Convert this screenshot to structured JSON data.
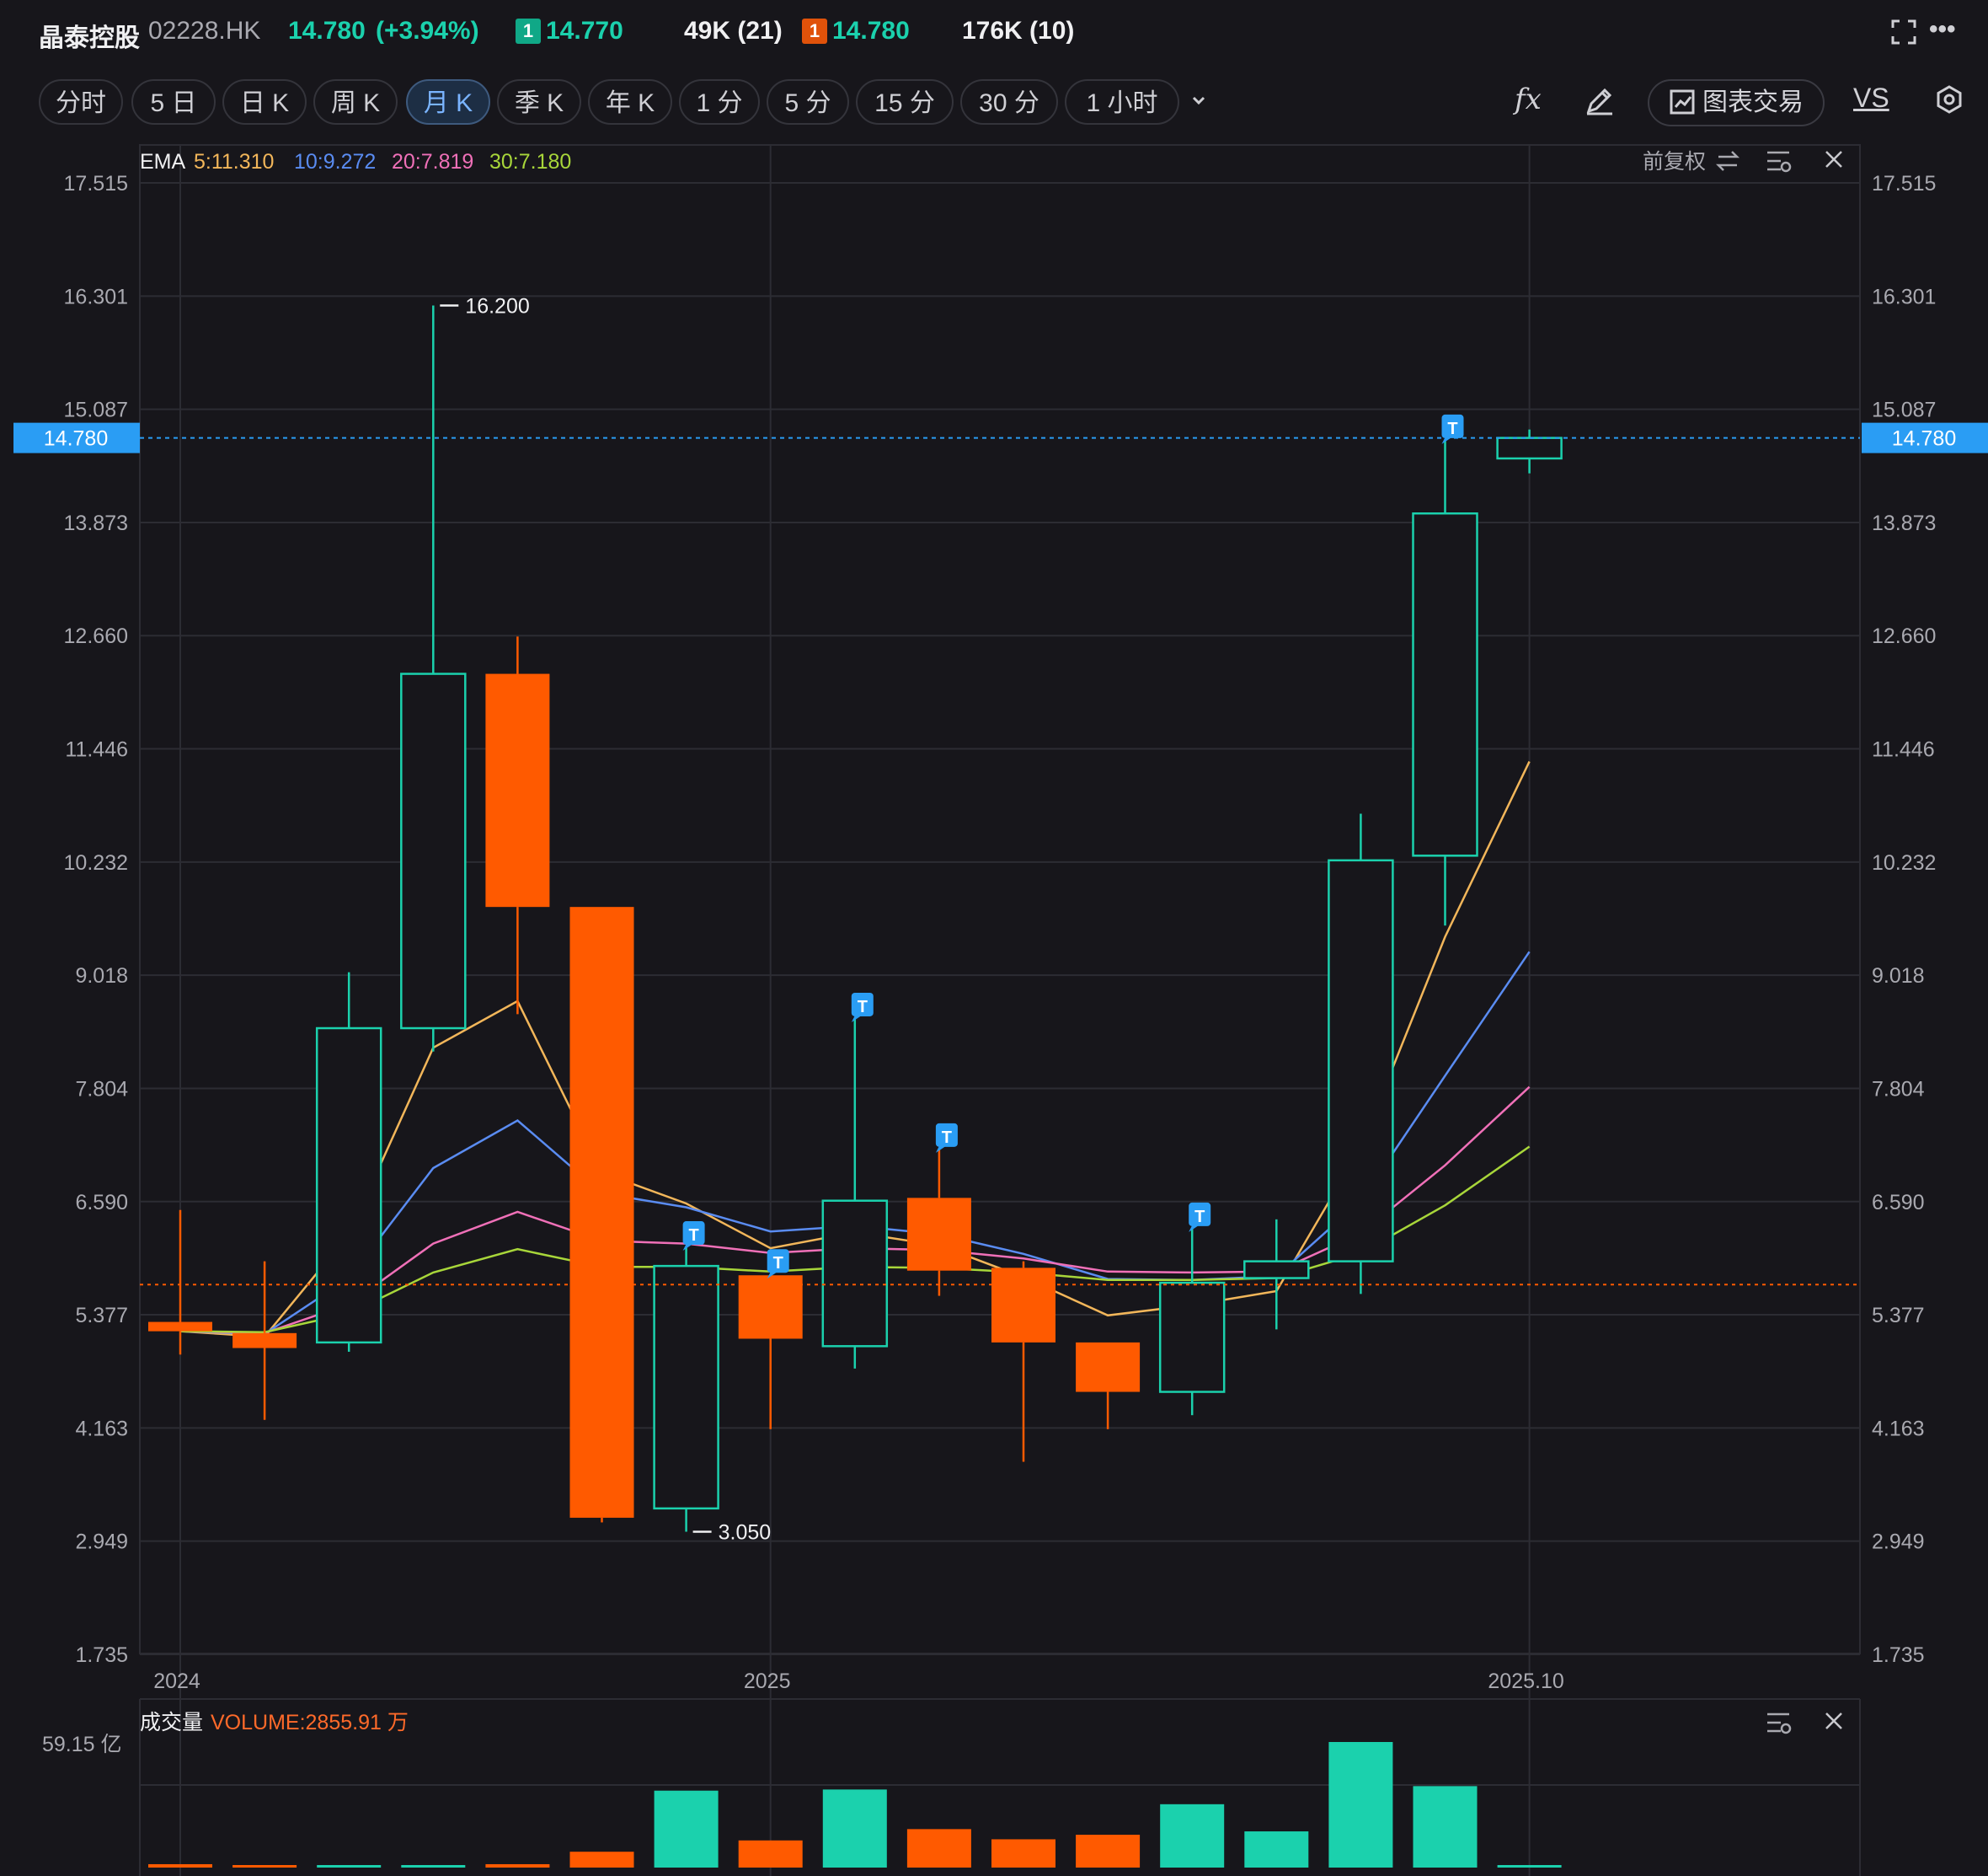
{
  "header": {
    "name": "晶泰控股",
    "code": "02228.HK",
    "price": "14.780",
    "change": "(+3.94%)",
    "bid_badge": "1",
    "bid_price": "14.770",
    "bid_vol": "49K (21)",
    "ask_badge": "1",
    "ask_price": "14.780",
    "ask_vol": "176K (10)",
    "more_label": "•••"
  },
  "tabs": [
    "分时",
    "5 日",
    "日 K",
    "周 K",
    "月 K",
    "季 K",
    "年 K",
    "1 分",
    "5 分",
    "15 分",
    "30 分",
    "1 小时"
  ],
  "active_tab": "月 K",
  "toolbar": {
    "fx_label": "fx",
    "trade_label": "图表交易",
    "vs_label": "VS"
  },
  "colors": {
    "up": "#1bd1ad",
    "down": "#ff5a00",
    "bg": "#17161b",
    "grid": "#2c2c33",
    "accent": "#2a9df4"
  },
  "chart_data": {
    "type": "candlestick",
    "period": "monthly",
    "indicator_label": "EMA",
    "ema_legend": [
      {
        "text": "5:11.310",
        "color": "#f2b65a"
      },
      {
        "text": "10:9.272",
        "color": "#5a8cf2"
      },
      {
        "text": "20:7.819",
        "color": "#f070b8"
      },
      {
        "text": "30:7.180",
        "color": "#a8d63a"
      }
    ],
    "adjust_label": "前复权",
    "y_ticks": [
      "17.515",
      "16.301",
      "15.087",
      "13.873",
      "12.660",
      "11.446",
      "10.232",
      "9.018",
      "7.804",
      "6.590",
      "5.377",
      "4.163",
      "2.949",
      "1.735"
    ],
    "y_range": [
      1.735,
      17.515
    ],
    "x_ticks": [
      {
        "label": "2024",
        "index": 0
      },
      {
        "label": "2025",
        "index": 7
      },
      {
        "label": "2025.10",
        "index": 16
      }
    ],
    "current_price": "14.780",
    "ref_price": 5.7,
    "max_label": "16.200",
    "min_label": "3.050",
    "candles": [
      {
        "o": 5.3,
        "h": 6.5,
        "l": 4.95,
        "c": 5.2
      },
      {
        "o": 5.18,
        "h": 5.95,
        "l": 4.25,
        "c": 5.02
      },
      {
        "o": 5.08,
        "h": 9.05,
        "l": 4.98,
        "c": 8.45
      },
      {
        "o": 8.45,
        "h": 16.2,
        "l": 8.2,
        "c": 12.25
      },
      {
        "o": 12.25,
        "h": 12.65,
        "l": 8.6,
        "c": 9.75
      },
      {
        "o": 9.75,
        "h": 9.75,
        "l": 3.15,
        "c": 3.2
      },
      {
        "o": 3.3,
        "h": 6.1,
        "l": 3.05,
        "c": 5.9
      },
      {
        "o": 5.8,
        "h": 5.8,
        "l": 4.15,
        "c": 5.12
      },
      {
        "o": 5.04,
        "h": 8.55,
        "l": 4.8,
        "c": 6.6
      },
      {
        "o": 6.63,
        "h": 7.15,
        "l": 5.58,
        "c": 5.85
      },
      {
        "o": 5.88,
        "h": 5.95,
        "l": 3.8,
        "c": 5.08
      },
      {
        "o": 5.08,
        "h": 5.08,
        "l": 4.15,
        "c": 4.55
      },
      {
        "o": 4.55,
        "h": 6.3,
        "l": 4.3,
        "c": 5.72
      },
      {
        "o": 5.77,
        "h": 6.4,
        "l": 5.22,
        "c": 5.95
      },
      {
        "o": 5.95,
        "h": 10.75,
        "l": 5.6,
        "c": 10.25
      },
      {
        "o": 10.3,
        "h": 14.75,
        "l": 9.55,
        "c": 13.97
      },
      {
        "o": 14.56,
        "h": 14.87,
        "l": 14.4,
        "c": 14.78
      }
    ],
    "ema": [
      {
        "name": "EMA5",
        "color": "#f2b65a",
        "values": [
          5.2,
          5.14,
          6.24,
          8.24,
          8.74,
          6.9,
          6.57,
          6.09,
          6.26,
          6.12,
          5.78,
          5.37,
          5.48,
          5.63,
          7.17,
          9.43,
          11.31
        ]
      },
      {
        "name": "EMA10",
        "color": "#5a8cf2",
        "values": [
          5.2,
          5.17,
          5.77,
          6.95,
          7.46,
          6.68,
          6.53,
          6.27,
          6.33,
          6.24,
          6.03,
          5.76,
          5.75,
          5.79,
          6.6,
          7.94,
          9.27
        ]
      },
      {
        "name": "EMA20",
        "color": "#f070b8",
        "values": [
          5.2,
          5.18,
          5.49,
          6.14,
          6.48,
          6.17,
          6.14,
          6.04,
          6.09,
          6.07,
          5.98,
          5.84,
          5.83,
          5.84,
          6.25,
          6.98,
          7.82
        ]
      },
      {
        "name": "EMA30",
        "color": "#a8d63a",
        "values": [
          5.2,
          5.19,
          5.39,
          5.83,
          6.08,
          5.89,
          5.89,
          5.84,
          5.89,
          5.88,
          5.83,
          5.75,
          5.75,
          5.77,
          6.04,
          6.55,
          7.18
        ]
      }
    ],
    "t_markers": [
      6,
      7,
      8,
      9,
      12,
      15
    ],
    "t_label": "T",
    "volume": {
      "title": "成交量",
      "label": "VOLUME:2855.91 万",
      "axis_max_label": "59.15 亿",
      "max": 59.15,
      "values": [
        0.3,
        0.2,
        0.2,
        0.2,
        0.3,
        1.4,
        6.8,
        2.4,
        6.9,
        3.4,
        2.5,
        2.9,
        5.6,
        3.2,
        11.1,
        7.2,
        0.12
      ]
    }
  }
}
